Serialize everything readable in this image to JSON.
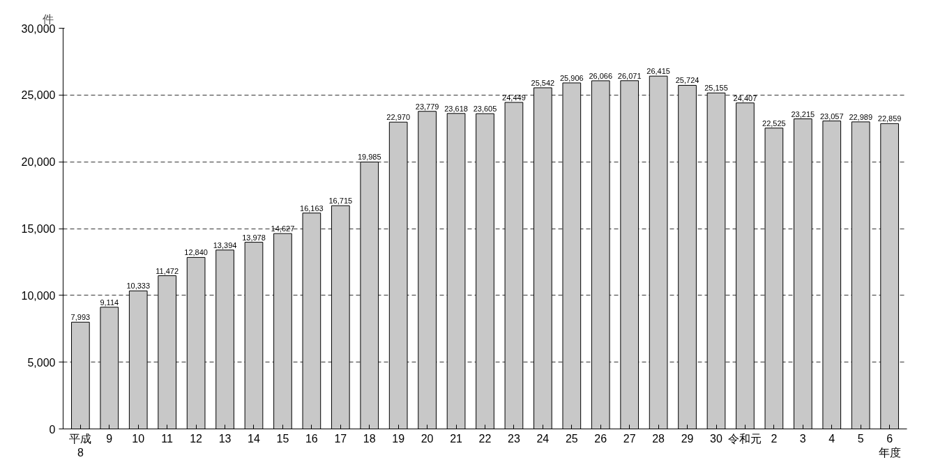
{
  "chart_data": {
    "type": "bar",
    "ylabel": "件",
    "categories": [
      "平成\n8",
      "9",
      "10",
      "11",
      "12",
      "13",
      "14",
      "15",
      "16",
      "17",
      "18",
      "19",
      "20",
      "21",
      "22",
      "23",
      "24",
      "25",
      "26",
      "27",
      "28",
      "29",
      "30",
      "令和元",
      "2",
      "3",
      "4",
      "5",
      "6\n年度"
    ],
    "values": [
      7993,
      9114,
      10333,
      11472,
      12840,
      13394,
      13978,
      14627,
      16163,
      16715,
      19985,
      22970,
      23779,
      23618,
      23605,
      24449,
      25542,
      25906,
      26066,
      26071,
      26415,
      25724,
      25155,
      24407,
      22525,
      23215,
      23057,
      22989,
      22859
    ],
    "color": "#c8c8c8",
    "ylim": [
      0,
      30000
    ],
    "yticks": [
      {
        "value": 0,
        "label": "0"
      },
      {
        "value": 5000,
        "label": "5,000"
      },
      {
        "value": 10000,
        "label": "10,000"
      },
      {
        "value": 15000,
        "label": "15,000"
      },
      {
        "value": 20000,
        "label": "20,000"
      },
      {
        "value": 25000,
        "label": "25,000"
      },
      {
        "value": 30000,
        "label": "30,000"
      }
    ],
    "grid": "y",
    "value_labels": [
      "7,993",
      "9,114",
      "10,333",
      "11,472",
      "12,840",
      "13,394",
      "13,978",
      "14,627",
      "16,163",
      "16,715",
      "19,985",
      "22,970",
      "23,779",
      "23,618",
      "23,605",
      "24,449",
      "25,542",
      "25,906",
      "26,066",
      "26,071",
      "26,415",
      "25,724",
      "25,155",
      "24,407",
      "22,525",
      "23,215",
      "23,057",
      "22,989",
      "22,859"
    ]
  }
}
